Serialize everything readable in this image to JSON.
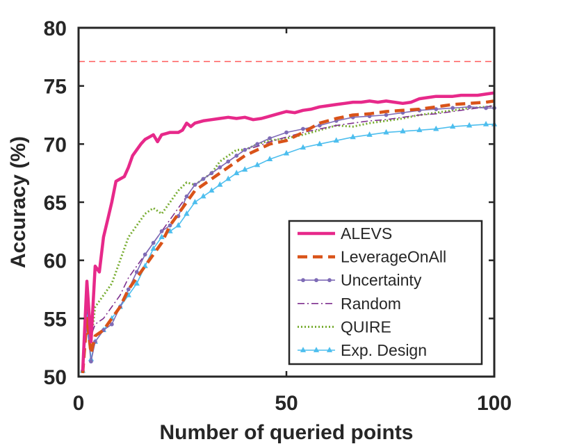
{
  "chart_data": {
    "type": "line",
    "title": "",
    "xlabel": "Number of queried points",
    "ylabel": "Accuracy (%)",
    "xlim": [
      0,
      100
    ],
    "ylim": [
      50,
      80
    ],
    "xticks": [
      0,
      50,
      100
    ],
    "yticks": [
      50,
      55,
      60,
      65,
      70,
      75,
      80
    ],
    "grid": false,
    "legend_position": "bottom-right",
    "reference_line": {
      "y": 77.1,
      "color": "#ff5a5a",
      "style": "dashed"
    },
    "series": [
      {
        "name": "ALEVS",
        "color": "#e7298a",
        "style": "solid-thick",
        "marker": "none",
        "x": [
          1,
          2,
          3,
          4,
          5,
          6,
          7,
          8,
          9,
          10,
          11,
          12,
          13,
          14,
          15,
          16,
          17,
          18,
          19,
          20,
          21,
          22,
          24,
          25,
          26,
          27,
          28,
          30,
          32,
          34,
          36,
          38,
          40,
          42,
          44,
          46,
          48,
          50,
          52,
          54,
          56,
          58,
          60,
          62,
          64,
          66,
          68,
          70,
          72,
          74,
          76,
          78,
          80,
          82,
          84,
          86,
          88,
          90,
          92,
          94,
          96,
          98,
          100
        ],
        "y": [
          50.5,
          58.2,
          53.0,
          59.5,
          59.0,
          62.0,
          63.5,
          65.0,
          66.8,
          67.0,
          67.2,
          68.0,
          69.0,
          69.5,
          70.0,
          70.4,
          70.6,
          70.8,
          70.2,
          70.8,
          70.9,
          71.0,
          71.0,
          71.2,
          71.8,
          71.5,
          71.8,
          72.0,
          72.1,
          72.2,
          72.3,
          72.2,
          72.3,
          72.1,
          72.2,
          72.4,
          72.6,
          72.8,
          72.7,
          72.9,
          73.0,
          73.2,
          73.3,
          73.4,
          73.5,
          73.6,
          73.6,
          73.7,
          73.6,
          73.7,
          73.6,
          73.5,
          73.6,
          73.9,
          74.0,
          74.1,
          74.1,
          74.1,
          74.2,
          74.2,
          74.2,
          74.3,
          74.4
        ]
      },
      {
        "name": "LeverageOnAll",
        "color": "#d95319",
        "style": "dashed-thick",
        "marker": "none",
        "x": [
          1,
          2,
          3,
          4,
          6,
          8,
          10,
          12,
          14,
          16,
          18,
          20,
          22,
          24,
          26,
          28,
          30,
          32,
          34,
          36,
          38,
          40,
          43,
          46,
          50,
          54,
          58,
          62,
          66,
          70,
          74,
          78,
          82,
          86,
          90,
          94,
          98,
          100
        ],
        "y": [
          50.3,
          55.0,
          52.0,
          53.5,
          54.0,
          55.0,
          56.0,
          57.5,
          58.5,
          59.5,
          60.5,
          61.5,
          63.0,
          64.0,
          65.0,
          66.0,
          66.5,
          67.0,
          67.5,
          68.0,
          68.5,
          69.0,
          69.5,
          70.0,
          70.3,
          71.0,
          71.8,
          72.2,
          72.5,
          72.6,
          72.8,
          72.9,
          73.0,
          73.2,
          73.4,
          73.5,
          73.6,
          73.7
        ]
      },
      {
        "name": "Uncertainty",
        "color": "#7e6bb6",
        "style": "solid-thin",
        "marker": "dot",
        "x": [
          1,
          2,
          3,
          4,
          6,
          8,
          10,
          12,
          14,
          16,
          18,
          20,
          22,
          24,
          26,
          28,
          30,
          32,
          34,
          36,
          38,
          40,
          43,
          46,
          50,
          54,
          58,
          62,
          66,
          70,
          74,
          78,
          82,
          86,
          90,
          94,
          98,
          100
        ],
        "y": [
          50.5,
          54.5,
          51.3,
          53.0,
          54.0,
          54.5,
          56.0,
          57.5,
          59.0,
          60.5,
          61.5,
          62.5,
          63.0,
          63.8,
          65.5,
          66.5,
          67.0,
          67.5,
          68.0,
          68.5,
          69.0,
          69.5,
          70.0,
          70.5,
          71.0,
          71.3,
          71.6,
          72.0,
          72.3,
          72.4,
          72.5,
          72.7,
          72.9,
          73.0,
          73.1,
          73.2,
          73.1,
          73.1
        ]
      },
      {
        "name": "Random",
        "color": "#7e2f8e",
        "style": "dashdot",
        "marker": "none",
        "x": [
          1,
          2,
          3,
          4,
          6,
          8,
          10,
          12,
          14,
          16,
          18,
          20,
          22,
          24,
          26,
          28,
          30,
          32,
          34,
          36,
          38,
          40,
          43,
          46,
          50,
          54,
          58,
          62,
          66,
          70,
          74,
          78,
          82,
          86,
          90,
          94,
          98,
          100
        ],
        "y": [
          50.5,
          56.0,
          53.5,
          54.5,
          55.0,
          56.0,
          57.0,
          58.5,
          59.5,
          60.5,
          61.5,
          62.5,
          63.5,
          64.5,
          65.5,
          66.5,
          67.0,
          67.5,
          68.0,
          68.5,
          69.0,
          69.5,
          69.8,
          70.2,
          70.6,
          71.0,
          71.3,
          71.6,
          71.8,
          72.0,
          72.1,
          72.3,
          72.5,
          72.6,
          72.8,
          73.0,
          73.2,
          73.3
        ]
      },
      {
        "name": "QUIRE",
        "color": "#77ac30",
        "style": "dotted",
        "marker": "none",
        "x": [
          1,
          2,
          3,
          4,
          6,
          7,
          8,
          10,
          12,
          14,
          16,
          18,
          20,
          22,
          24,
          26,
          28,
          30,
          32,
          34,
          36,
          38,
          40,
          43,
          46,
          50,
          54,
          58,
          62,
          66,
          70,
          74,
          78,
          82,
          86,
          90,
          94,
          98,
          100
        ],
        "y": [
          50.5,
          57.0,
          53.0,
          56.0,
          57.0,
          57.5,
          58.0,
          60.0,
          62.0,
          63.0,
          64.0,
          64.5,
          64.0,
          65.0,
          66.0,
          66.7,
          66.5,
          67.0,
          67.5,
          68.5,
          69.0,
          69.5,
          69.5,
          70.0,
          70.3,
          70.5,
          70.8,
          71.2,
          71.6,
          71.5,
          71.8,
          72.0,
          72.2,
          72.5,
          72.7,
          72.9,
          73.1,
          73.2,
          73.3
        ]
      },
      {
        "name": "Exp. Design",
        "color": "#4dbeee",
        "style": "solid-thin",
        "marker": "triangle",
        "x": [
          1,
          2,
          3,
          4,
          6,
          8,
          10,
          12,
          14,
          16,
          18,
          20,
          22,
          24,
          26,
          28,
          30,
          32,
          34,
          36,
          38,
          40,
          43,
          46,
          50,
          54,
          58,
          62,
          66,
          70,
          74,
          78,
          82,
          86,
          90,
          94,
          98,
          100
        ],
        "y": [
          50.5,
          55.5,
          51.5,
          53.0,
          54.0,
          55.0,
          56.0,
          57.0,
          58.0,
          59.5,
          61.0,
          62.0,
          62.5,
          63.0,
          64.0,
          65.0,
          65.5,
          66.0,
          66.5,
          67.0,
          67.5,
          67.8,
          68.2,
          68.7,
          69.2,
          69.7,
          70.0,
          70.3,
          70.6,
          70.8,
          71.0,
          71.1,
          71.2,
          71.3,
          71.5,
          71.6,
          71.7,
          71.7
        ]
      }
    ]
  }
}
